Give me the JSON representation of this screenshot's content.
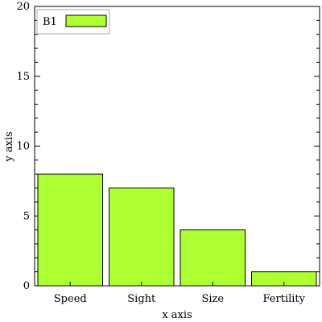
{
  "chart_data": {
    "type": "bar",
    "categories": [
      "Speed",
      "Sight",
      "Size",
      "Fertility"
    ],
    "series": [
      {
        "name": "B1",
        "values": [
          8,
          7,
          4,
          1
        ]
      }
    ],
    "xlabel": "x axis",
    "ylabel": "y axis",
    "ylim": [
      0,
      20
    ],
    "yticks": [
      0,
      5,
      10,
      15,
      20
    ],
    "legend_position": "top-left",
    "grid": false,
    "colors": {
      "bar_fill": "#adff2f",
      "bar_stroke": "#000000",
      "axis": "#000000"
    }
  }
}
